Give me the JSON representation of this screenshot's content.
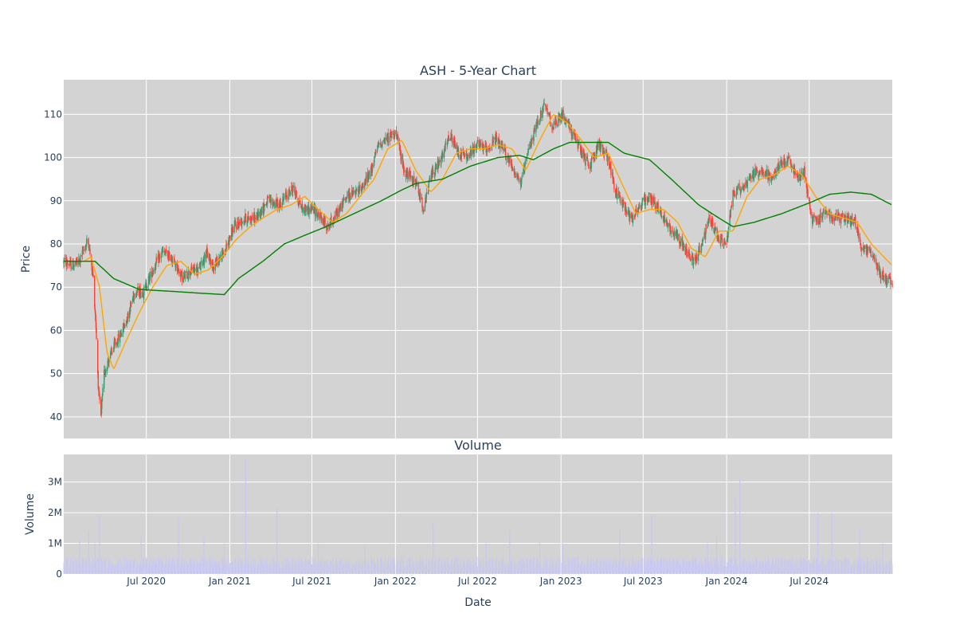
{
  "chart_data": [
    {
      "type": "candlestick",
      "title": "ASH - 5-Year Chart",
      "ylabel": "Price",
      "ylim": [
        35,
        118
      ],
      "yticks": [
        40,
        50,
        60,
        70,
        80,
        90,
        100,
        110
      ],
      "x_range": [
        "2020-01-01",
        "2024-12-31"
      ],
      "background": "#d3d3d3",
      "grid": true,
      "colors": {
        "up": "#3d9970",
        "down": "#ff4136",
        "ma_short": "#ffa500",
        "ma_long": "#008000"
      },
      "price_keypoints": [
        [
          "2020-01-01",
          76
        ],
        [
          "2020-01-20",
          75
        ],
        [
          "2020-02-05",
          76
        ],
        [
          "2020-02-15",
          79
        ],
        [
          "2020-02-24",
          81
        ],
        [
          "2020-03-06",
          72
        ],
        [
          "2020-03-12",
          61
        ],
        [
          "2020-03-18",
          45
        ],
        [
          "2020-03-23",
          40
        ],
        [
          "2020-03-30",
          50
        ],
        [
          "2020-04-08",
          53
        ],
        [
          "2020-04-20",
          56
        ],
        [
          "2020-05-05",
          59
        ],
        [
          "2020-05-20",
          63
        ],
        [
          "2020-06-05",
          69
        ],
        [
          "2020-06-25",
          69
        ],
        [
          "2020-07-20",
          75
        ],
        [
          "2020-08-05",
          78
        ],
        [
          "2020-08-25",
          77
        ],
        [
          "2020-09-20",
          72
        ],
        [
          "2020-10-10",
          74
        ],
        [
          "2020-10-25",
          74
        ],
        [
          "2020-11-10",
          78
        ],
        [
          "2020-11-25",
          75
        ],
        [
          "2020-12-20",
          78
        ],
        [
          "2021-01-10",
          84
        ],
        [
          "2021-02-05",
          86
        ],
        [
          "2021-03-01",
          86
        ],
        [
          "2021-03-25",
          90
        ],
        [
          "2021-04-20",
          89
        ],
        [
          "2021-05-20",
          93
        ],
        [
          "2021-06-10",
          88
        ],
        [
          "2021-07-05",
          88
        ],
        [
          "2021-08-05",
          84
        ],
        [
          "2021-08-25",
          87
        ],
        [
          "2021-09-15",
          91
        ],
        [
          "2021-10-10",
          92
        ],
        [
          "2021-11-05",
          96
        ],
        [
          "2021-11-25",
          103
        ],
        [
          "2021-12-10",
          104
        ],
        [
          "2022-01-01",
          106
        ],
        [
          "2022-01-20",
          97
        ],
        [
          "2022-02-15",
          94
        ],
        [
          "2022-03-05",
          88
        ],
        [
          "2022-03-20",
          96
        ],
        [
          "2022-04-10",
          99
        ],
        [
          "2022-05-01",
          105
        ],
        [
          "2022-05-20",
          101
        ],
        [
          "2022-06-10",
          100
        ],
        [
          "2022-06-30",
          103
        ],
        [
          "2022-07-20",
          102
        ],
        [
          "2022-08-10",
          104
        ],
        [
          "2022-08-25",
          102
        ],
        [
          "2022-09-20",
          97
        ],
        [
          "2022-10-05",
          94
        ],
        [
          "2022-10-25",
          103
        ],
        [
          "2022-11-10",
          108
        ],
        [
          "2022-11-25",
          112
        ],
        [
          "2022-12-15",
          107
        ],
        [
          "2023-01-05",
          110
        ],
        [
          "2023-01-25",
          106
        ],
        [
          "2023-02-15",
          101
        ],
        [
          "2023-03-05",
          98
        ],
        [
          "2023-03-25",
          103
        ],
        [
          "2023-04-15",
          100
        ],
        [
          "2023-05-01",
          92
        ],
        [
          "2023-05-20",
          89
        ],
        [
          "2023-06-05",
          86
        ],
        [
          "2023-06-25",
          89
        ],
        [
          "2023-07-15",
          91
        ],
        [
          "2023-08-05",
          88
        ],
        [
          "2023-08-25",
          84
        ],
        [
          "2023-09-15",
          82
        ],
        [
          "2023-10-05",
          78
        ],
        [
          "2023-10-20",
          76
        ],
        [
          "2023-11-05",
          79
        ],
        [
          "2023-11-25",
          86
        ],
        [
          "2023-12-15",
          81
        ],
        [
          "2024-01-01",
          80
        ],
        [
          "2024-01-15",
          92
        ],
        [
          "2024-02-05",
          93
        ],
        [
          "2024-02-25",
          96
        ],
        [
          "2024-03-20",
          97
        ],
        [
          "2024-04-10",
          95
        ],
        [
          "2024-05-01",
          99
        ],
        [
          "2024-05-20",
          99
        ],
        [
          "2024-06-05",
          95
        ],
        [
          "2024-06-20",
          97
        ],
        [
          "2024-07-05",
          86
        ],
        [
          "2024-07-20",
          85
        ],
        [
          "2024-08-05",
          88
        ],
        [
          "2024-08-25",
          86
        ],
        [
          "2024-09-20",
          86
        ],
        [
          "2024-10-10",
          85
        ],
        [
          "2024-10-25",
          79
        ],
        [
          "2024-11-15",
          78
        ],
        [
          "2024-12-05",
          73
        ],
        [
          "2024-12-31",
          71
        ]
      ],
      "ma_short_keypoints": [
        [
          "2020-01-01",
          76
        ],
        [
          "2020-02-15",
          76
        ],
        [
          "2020-03-01",
          77
        ],
        [
          "2020-03-20",
          70
        ],
        [
          "2020-04-05",
          55
        ],
        [
          "2020-04-20",
          51
        ],
        [
          "2020-05-15",
          57
        ],
        [
          "2020-06-15",
          64
        ],
        [
          "2020-07-15",
          70
        ],
        [
          "2020-08-15",
          75
        ],
        [
          "2020-09-15",
          76
        ],
        [
          "2020-10-15",
          73
        ],
        [
          "2020-11-15",
          74
        ],
        [
          "2020-12-15",
          77
        ],
        [
          "2021-01-15",
          81
        ],
        [
          "2021-02-15",
          84
        ],
        [
          "2021-03-15",
          86
        ],
        [
          "2021-04-15",
          88
        ],
        [
          "2021-05-15",
          89
        ],
        [
          "2021-06-15",
          91
        ],
        [
          "2021-07-15",
          88
        ],
        [
          "2021-08-15",
          85
        ],
        [
          "2021-09-15",
          87
        ],
        [
          "2021-10-15",
          91
        ],
        [
          "2021-11-15",
          95
        ],
        [
          "2021-12-15",
          102
        ],
        [
          "2022-01-15",
          104
        ],
        [
          "2022-02-15",
          97
        ],
        [
          "2022-03-20",
          92
        ],
        [
          "2022-04-15",
          95
        ],
        [
          "2022-05-15",
          101
        ],
        [
          "2022-06-15",
          102
        ],
        [
          "2022-07-15",
          102
        ],
        [
          "2022-08-15",
          103
        ],
        [
          "2022-09-15",
          102
        ],
        [
          "2022-10-15",
          97
        ],
        [
          "2022-11-15",
          104
        ],
        [
          "2022-12-15",
          110
        ],
        [
          "2023-01-15",
          108
        ],
        [
          "2023-02-15",
          104
        ],
        [
          "2023-03-15",
          100
        ],
        [
          "2023-04-15",
          101
        ],
        [
          "2023-05-15",
          94
        ],
        [
          "2023-06-15",
          87
        ],
        [
          "2023-07-15",
          88
        ],
        [
          "2023-08-15",
          88
        ],
        [
          "2023-09-15",
          85
        ],
        [
          "2023-10-15",
          79
        ],
        [
          "2023-11-15",
          77
        ],
        [
          "2023-12-15",
          83
        ],
        [
          "2024-01-15",
          83
        ],
        [
          "2024-02-15",
          91
        ],
        [
          "2024-03-15",
          95
        ],
        [
          "2024-04-15",
          96
        ],
        [
          "2024-05-15",
          98
        ],
        [
          "2024-06-15",
          96
        ],
        [
          "2024-07-15",
          91
        ],
        [
          "2024-08-15",
          87
        ],
        [
          "2024-09-15",
          86
        ],
        [
          "2024-10-15",
          85
        ],
        [
          "2024-11-15",
          80
        ],
        [
          "2024-12-31",
          75
        ]
      ],
      "ma_long_keypoints": [
        [
          "2020-01-01",
          76
        ],
        [
          "2020-03-10",
          76
        ],
        [
          "2020-04-20",
          72
        ],
        [
          "2020-06-15",
          69.5
        ],
        [
          "2020-09-01",
          69
        ],
        [
          "2020-11-15",
          68.5
        ],
        [
          "2020-12-20",
          68.3
        ],
        [
          "2021-01-20",
          72
        ],
        [
          "2021-03-15",
          76
        ],
        [
          "2021-05-01",
          80
        ],
        [
          "2021-06-15",
          82
        ],
        [
          "2021-08-01",
          84
        ],
        [
          "2021-10-01",
          87
        ],
        [
          "2021-12-01",
          90
        ],
        [
          "2022-01-15",
          92.5
        ],
        [
          "2022-02-15",
          94
        ],
        [
          "2022-04-15",
          95
        ],
        [
          "2022-06-15",
          98
        ],
        [
          "2022-08-15",
          100
        ],
        [
          "2022-10-01",
          100.5
        ],
        [
          "2022-11-01",
          99.5
        ],
        [
          "2022-12-15",
          102
        ],
        [
          "2023-01-20",
          103.5
        ],
        [
          "2023-03-15",
          103.5
        ],
        [
          "2023-04-15",
          103.5
        ],
        [
          "2023-05-20",
          101
        ],
        [
          "2023-07-15",
          99.5
        ],
        [
          "2023-09-01",
          95
        ],
        [
          "2023-11-01",
          89
        ],
        [
          "2023-12-15",
          86
        ],
        [
          "2024-01-15",
          84
        ],
        [
          "2024-03-01",
          85
        ],
        [
          "2024-05-01",
          87
        ],
        [
          "2024-07-01",
          89.5
        ],
        [
          "2024-08-15",
          91.5
        ],
        [
          "2024-10-01",
          92
        ],
        [
          "2024-11-15",
          91.5
        ],
        [
          "2024-12-31",
          89
        ]
      ]
    },
    {
      "type": "bar",
      "title": "Volume",
      "xlabel": "Date",
      "ylabel": "Volume",
      "ylim": [
        0,
        3900000
      ],
      "yticks": [
        0,
        1000000,
        2000000,
        3000000
      ],
      "ytick_labels": [
        "0",
        "1M",
        "2M",
        "3M"
      ],
      "xticks": [
        "2020-07-01",
        "2021-01-01",
        "2021-07-01",
        "2022-01-01",
        "2022-07-01",
        "2023-01-01",
        "2023-07-01",
        "2024-01-01",
        "2024-07-01"
      ],
      "xtick_labels": [
        "Jul 2020",
        "Jan 2021",
        "Jul 2021",
        "Jan 2022",
        "Jul 2022",
        "Jan 2023",
        "Jul 2023",
        "Jan 2024",
        "Jul 2024"
      ],
      "background": "#d3d3d3",
      "bar_color": "#c8c8f0",
      "base_level": 420000,
      "spikes": [
        [
          "2020-02-05",
          1100000
        ],
        [
          "2020-02-25",
          1400000
        ],
        [
          "2020-03-20",
          1900000
        ],
        [
          "2020-03-10",
          1000000
        ],
        [
          "2020-06-20",
          1200000
        ],
        [
          "2020-09-10",
          1800000
        ],
        [
          "2020-11-05",
          1200000
        ],
        [
          "2020-12-20",
          1000000
        ],
        [
          "2021-02-05",
          3700000
        ],
        [
          "2021-04-15",
          2150000
        ],
        [
          "2021-07-15",
          1000000
        ],
        [
          "2021-10-25",
          900000
        ],
        [
          "2022-03-25",
          1650000
        ],
        [
          "2022-07-20",
          1000000
        ],
        [
          "2022-09-10",
          1400000
        ],
        [
          "2022-11-15",
          1050000
        ],
        [
          "2023-01-05",
          1000000
        ],
        [
          "2023-05-10",
          1500000
        ],
        [
          "2023-07-20",
          1900000
        ],
        [
          "2023-11-20",
          1000000
        ],
        [
          "2023-12-10",
          1300000
        ],
        [
          "2024-01-20",
          2450000
        ],
        [
          "2024-01-30",
          3100000
        ],
        [
          "2024-07-20",
          2000000
        ],
        [
          "2024-08-20",
          2000000
        ],
        [
          "2024-10-20",
          1500000
        ],
        [
          "2024-12-10",
          1000000
        ]
      ]
    }
  ]
}
